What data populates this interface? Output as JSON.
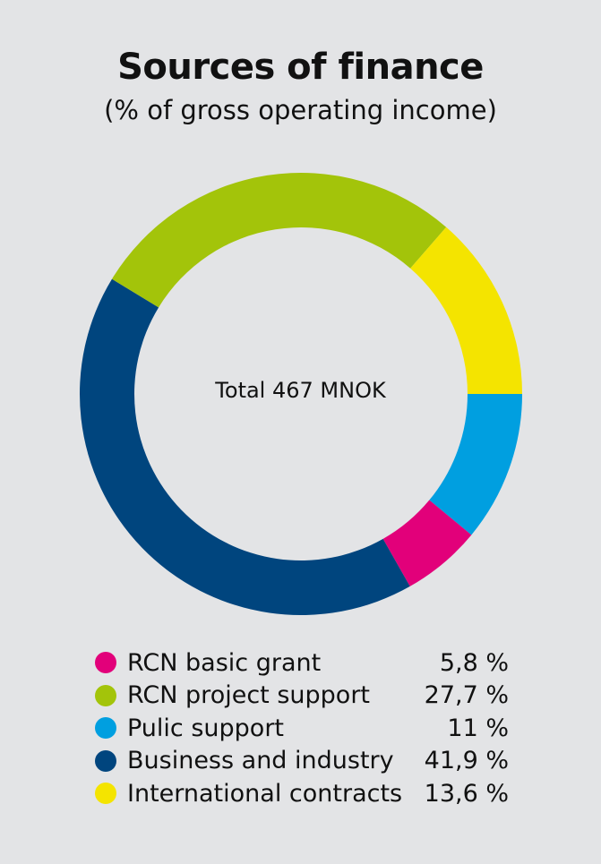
{
  "header": {
    "title": "Sources of finance",
    "subtitle": "(% of gross operating income)"
  },
  "center_label": "Total 467 MNOK",
  "legend": [
    {
      "label": "RCN basic grant",
      "value": "5,8 %",
      "color": "#e2007a"
    },
    {
      "label": "RCN project support",
      "value": "27,7 %",
      "color": "#a3c40a"
    },
    {
      "label": "Pulic support",
      "value": "11 %",
      "color": "#009fe0"
    },
    {
      "label": "Business and industry",
      "value": "41,9 %",
      "color": "#00457e"
    },
    {
      "label": "International contracts",
      "value": "13,6 %",
      "color": "#f4e400"
    }
  ],
  "chart_data": {
    "type": "pie",
    "variant": "donut",
    "title": "Sources of finance",
    "subtitle": "(% of gross operating income)",
    "center_annotation": "Total 467 MNOK",
    "categories": [
      "RCN basic grant",
      "RCN project support",
      "Pulic support",
      "Business and industry",
      "International contracts"
    ],
    "values": [
      5.8,
      27.7,
      11,
      41.9,
      13.6
    ],
    "colors": [
      "#e2007a",
      "#a3c40a",
      "#009fe0",
      "#00457e",
      "#f4e400"
    ],
    "unit": "%",
    "total": "467 MNOK",
    "draw_order_clockwise_from_3_oclock": [
      "Pulic support",
      "RCN basic grant",
      "Business and industry",
      "RCN project support",
      "International contracts"
    ],
    "legend_position": "bottom"
  }
}
